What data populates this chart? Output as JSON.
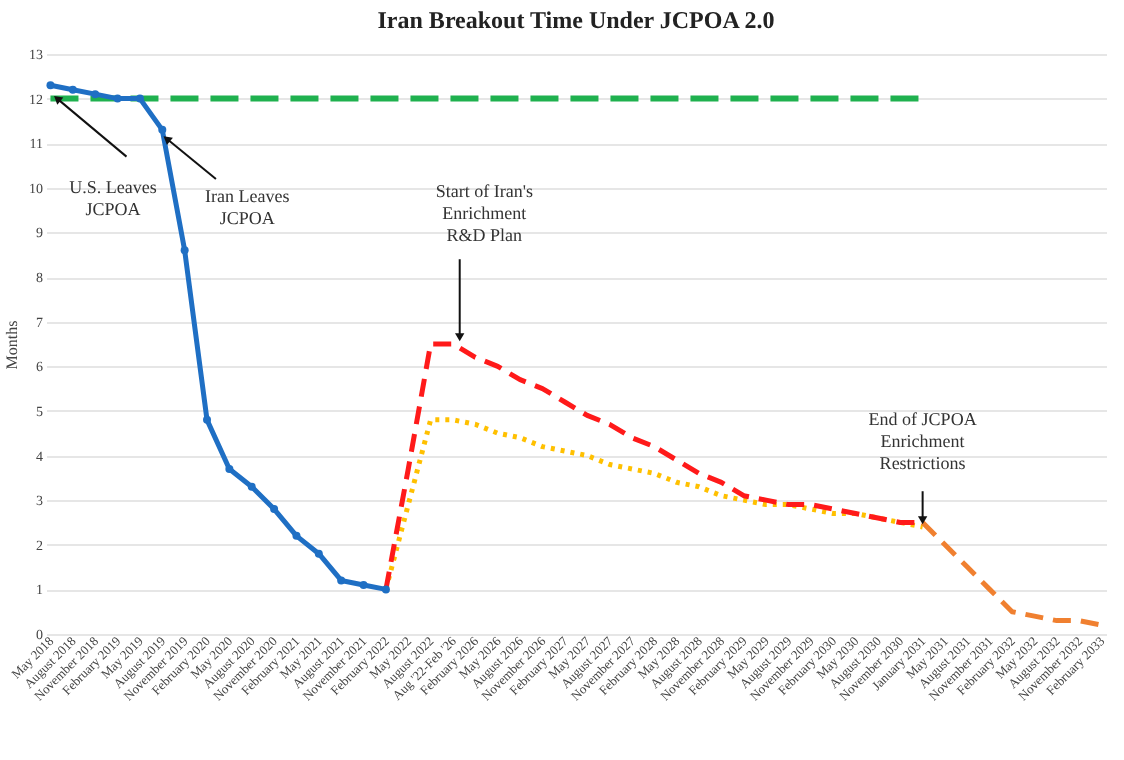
{
  "chart_data": {
    "type": "line",
    "title": "Iran Breakout Time Under JCPOA 2.0",
    "ylabel": "Months",
    "categories": [
      "May 2018",
      "August 2018",
      "November 2018",
      "February 2019",
      "May 2019",
      "August 2019",
      "November 2019",
      "February 2020",
      "May 2020",
      "August 2020",
      "November 2020",
      "February 2021",
      "May 2021",
      "August 2021",
      "November 2021",
      "February 2022",
      "May 2022",
      "August 2022",
      "Aug '22-Feb '26",
      "February 2026",
      "May 2026",
      "August 2026",
      "November 2026",
      "February 2027",
      "May 2027",
      "August 2027",
      "November 2027",
      "February 2028",
      "May 2028",
      "August 2028",
      "November 2028",
      "February 2029",
      "May 2029",
      "August 2029",
      "November 2029",
      "February 2030",
      "May 2030",
      "August 2030",
      "November 2030",
      "January 2031",
      "May 2031",
      "August 2031",
      "November 2031",
      "February 2032",
      "May 2032",
      "August 2032",
      "November 2032",
      "February 2033"
    ],
    "series": [
      {
        "color": "#1fb14f",
        "line_style": "dashed",
        "marker": "none",
        "values": [
          12,
          12,
          12,
          12,
          12,
          12,
          12,
          12,
          12,
          12,
          12,
          12,
          12,
          12,
          12,
          12,
          12,
          12,
          12,
          12,
          12,
          12,
          12,
          12,
          12,
          12,
          12,
          12,
          12,
          12,
          12,
          12,
          12,
          12,
          12,
          12,
          12,
          12,
          12,
          12,
          null,
          null,
          null,
          null,
          null,
          null,
          null,
          null
        ]
      },
      {
        "color": "#ffc000",
        "line_style": "dotted",
        "marker": "none",
        "values": [
          null,
          null,
          null,
          null,
          null,
          null,
          null,
          null,
          null,
          null,
          null,
          null,
          null,
          null,
          null,
          1.0,
          2.9,
          4.8,
          4.8,
          4.7,
          4.5,
          4.4,
          4.2,
          4.1,
          4.0,
          3.8,
          3.7,
          3.6,
          3.4,
          3.3,
          3.1,
          3.0,
          2.9,
          2.9,
          2.8,
          2.7,
          2.7,
          2.6,
          2.5,
          2.4,
          null,
          null,
          null,
          null,
          null,
          null,
          null,
          null
        ]
      },
      {
        "color": "#ff1a1a",
        "line_style": "dashed",
        "marker": "none",
        "values": [
          null,
          null,
          null,
          null,
          null,
          null,
          null,
          null,
          null,
          null,
          null,
          null,
          null,
          null,
          null,
          1.0,
          3.7,
          6.5,
          6.5,
          6.2,
          6.0,
          5.7,
          5.5,
          5.2,
          4.9,
          4.7,
          4.4,
          4.2,
          3.9,
          3.6,
          3.4,
          3.1,
          3.0,
          2.9,
          2.9,
          2.8,
          2.7,
          2.6,
          2.5,
          2.5,
          null,
          null,
          null,
          null,
          null,
          null,
          null,
          null
        ]
      },
      {
        "color": "#f08030",
        "line_style": "dashed",
        "marker": "none",
        "values": [
          null,
          null,
          null,
          null,
          null,
          null,
          null,
          null,
          null,
          null,
          null,
          null,
          null,
          null,
          null,
          null,
          null,
          null,
          null,
          null,
          null,
          null,
          null,
          null,
          null,
          null,
          null,
          null,
          null,
          null,
          null,
          null,
          null,
          null,
          null,
          null,
          null,
          null,
          null,
          2.5,
          2.0,
          1.5,
          1.0,
          0.5,
          0.4,
          0.3,
          0.3,
          0.2
        ]
      },
      {
        "color": "#1f6fc4",
        "line_style": "solid",
        "marker": "circle",
        "values": [
          12.3,
          12.2,
          12.1,
          12.0,
          12.0,
          11.3,
          8.6,
          4.8,
          3.7,
          3.3,
          2.8,
          2.2,
          1.8,
          1.2,
          1.1,
          1.0,
          null,
          null,
          null,
          null,
          null,
          null,
          null,
          null,
          null,
          null,
          null,
          null,
          null,
          null,
          null,
          null,
          null,
          null,
          null,
          null,
          null,
          null,
          null,
          null,
          null,
          null,
          null,
          null,
          null,
          null,
          null,
          null
        ]
      }
    ],
    "ylim": [
      0,
      13
    ],
    "yticks": [
      0,
      1,
      2,
      3,
      4,
      5,
      6,
      7,
      8,
      9,
      10,
      11,
      12,
      13
    ],
    "grid": "y",
    "annotations": [
      {
        "text": "U.S. Leaves JCPOA",
        "x": "May 2018",
        "y": 12.3
      },
      {
        "text": "Iran Leaves JCPOA",
        "x": "August 2019",
        "y": 11.3
      },
      {
        "text": "Start of Iran's Enrichment R&D Plan",
        "x": "Aug '22-Feb '26",
        "y": 6.5
      },
      {
        "text": "End of JCPOA Enrichment Restrictions",
        "x": "January 2031",
        "y": 2.5
      }
    ]
  }
}
